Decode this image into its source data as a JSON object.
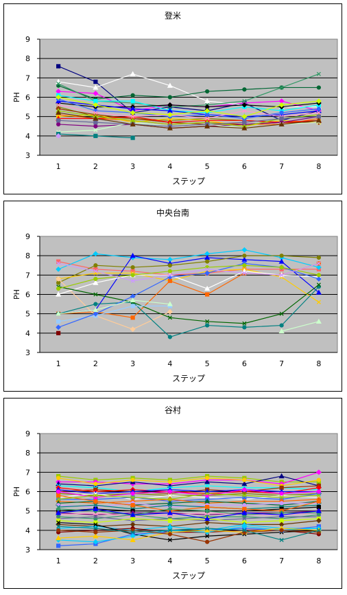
{
  "chart_data": [
    {
      "type": "line",
      "title": "登米",
      "xlabel": "ステップ",
      "ylabel": "PH",
      "categories": [
        "1",
        "2",
        "3",
        "4",
        "5",
        "6",
        "7",
        "8"
      ],
      "ylim": [
        3,
        9
      ],
      "yticks": [
        3,
        4,
        5,
        6,
        7,
        8,
        9
      ],
      "grid": true,
      "plot_background": "#c0c0c0",
      "series": [
        {
          "color": "#000080",
          "values": [
            7.6,
            6.8,
            5.2,
            5.5,
            5.3,
            5.7,
            4.8,
            5.3
          ]
        },
        {
          "color": "#ff00ff",
          "values": [
            6.3,
            6.2,
            5.3,
            5.6,
            5.5,
            5.7,
            5.8,
            5.3
          ]
        },
        {
          "color": "#ffffff",
          "values": [
            6.8,
            6.5,
            7.2,
            6.6,
            5.8,
            5.6,
            5.5,
            5.5
          ]
        },
        {
          "color": "#006633",
          "values": [
            6.6,
            5.9,
            6.1,
            6.0,
            6.3,
            6.4,
            6.5,
            6.5
          ]
        },
        {
          "color": "#339966",
          "values": [
            6.7,
            5.8,
            5.7,
            5.5,
            5.6,
            5.8,
            6.5,
            7.2
          ]
        },
        {
          "color": "#00ffff",
          "values": [
            6.1,
            5.8,
            5.8,
            5.3,
            5.2,
            5.5,
            5.3,
            5.6
          ]
        },
        {
          "color": "#000000",
          "values": [
            5.7,
            5.5,
            5.5,
            5.6,
            5.5,
            5.6,
            5.5,
            5.7
          ]
        },
        {
          "color": "#0000ff",
          "values": [
            5.8,
            5.6,
            5.4,
            5.3,
            5.1,
            5.0,
            5.1,
            5.3
          ]
        },
        {
          "color": "#808000",
          "values": [
            5.5,
            5.0,
            4.9,
            4.8,
            4.9,
            4.8,
            4.7,
            4.8
          ]
        },
        {
          "color": "#ff6600",
          "values": [
            5.1,
            4.9,
            4.8,
            4.6,
            4.7,
            4.6,
            4.6,
            4.9
          ]
        },
        {
          "color": "#ffcc00",
          "values": [
            5.0,
            5.1,
            4.7,
            4.9,
            4.8,
            4.5,
            4.8,
            4.7
          ]
        },
        {
          "color": "#993300",
          "values": [
            5.4,
            5.1,
            4.9,
            4.7,
            4.6,
            4.6,
            4.7,
            4.7
          ]
        },
        {
          "color": "#ff0000",
          "values": [
            4.9,
            4.9,
            5.0,
            4.7,
            4.8,
            4.8,
            4.7,
            4.8
          ]
        },
        {
          "color": "#800080",
          "values": [
            4.6,
            4.5,
            4.6,
            4.4,
            4.5,
            4.6,
            4.7,
            5.0
          ]
        },
        {
          "color": "#ccffcc",
          "values": [
            4.2,
            4.3,
            4.7,
            4.5,
            4.6,
            4.4,
            4.6,
            4.7
          ]
        },
        {
          "color": "#008080",
          "values": [
            4.1,
            4.0,
            3.9,
            null,
            null,
            null,
            null,
            null
          ]
        },
        {
          "color": "#cc99ff",
          "values": [
            4.0,
            null,
            null,
            null,
            null,
            null,
            null,
            null
          ]
        },
        {
          "color": "#99cc00",
          "values": [
            5.3,
            5.0,
            4.8,
            4.6,
            4.7,
            4.5,
            4.9,
            5.1
          ]
        },
        {
          "color": "#3366ff",
          "values": [
            5.9,
            5.3,
            5.2,
            5.0,
            5.1,
            4.9,
            5.2,
            5.4
          ]
        },
        {
          "color": "#ff99cc",
          "values": [
            5.6,
            5.2,
            5.0,
            5.1,
            4.9,
            5.3,
            5.0,
            5.2
          ]
        },
        {
          "color": "#666699",
          "values": [
            4.8,
            4.7,
            4.6,
            4.5,
            4.6,
            4.7,
            4.9,
            5.0
          ]
        },
        {
          "color": "#ccff00",
          "values": [
            6.0,
            5.6,
            5.2,
            5.1,
            5.3,
            5.0,
            5.6,
            5.8
          ]
        },
        {
          "color": "#663300",
          "values": [
            5.2,
            4.9,
            4.6,
            4.4,
            4.5,
            4.4,
            4.6,
            4.8
          ]
        }
      ]
    },
    {
      "type": "line",
      "title": "中央台南",
      "xlabel": "ステップ",
      "ylabel": "PH",
      "categories": [
        "1",
        "2",
        "3",
        "4",
        "5",
        "6",
        "7",
        "8"
      ],
      "ylim": [
        3,
        9
      ],
      "yticks": [
        3,
        4,
        5,
        6,
        7,
        8,
        9
      ],
      "grid": true,
      "plot_background": "#c0c0c0",
      "series": [
        {
          "color": "#ff6666",
          "values": [
            7.7,
            7.3,
            7.2,
            7.0,
            7.1,
            7.3,
            7.3,
            7.3
          ]
        },
        {
          "color": "#00ccff",
          "values": [
            7.3,
            8.1,
            7.9,
            7.8,
            8.1,
            8.3,
            7.9,
            7.4
          ]
        },
        {
          "color": "#0000ff",
          "values": [
            5.0,
            5.2,
            8.0,
            7.6,
            7.9,
            7.8,
            7.7,
            6.1
          ]
        },
        {
          "color": "#808000",
          "values": [
            6.6,
            7.5,
            7.4,
            7.5,
            7.7,
            8.0,
            8.0,
            7.9
          ]
        },
        {
          "color": "#ffcc00",
          "values": [
            6.8,
            7.1,
            7.1,
            6.7,
            7.2,
            7.3,
            6.9,
            5.6
          ]
        },
        {
          "color": "#ff6600",
          "values": [
            5.0,
            5.1,
            4.8,
            6.7,
            6.0,
            7.1,
            7.0,
            7.6
          ]
        },
        {
          "color": "#ffcc99",
          "values": [
            6.8,
            4.9,
            4.2,
            5.1,
            null,
            null,
            null,
            null
          ]
        },
        {
          "color": "#ffffff",
          "values": [
            6.0,
            6.6,
            7.0,
            7.0,
            6.3,
            7.2,
            7.0,
            6.9
          ]
        },
        {
          "color": "#008080",
          "values": [
            5.0,
            5.5,
            5.6,
            3.8,
            4.4,
            4.3,
            4.4,
            6.4
          ]
        },
        {
          "color": "#006600",
          "values": [
            6.4,
            6.0,
            5.6,
            4.8,
            4.6,
            4.5,
            5.0,
            6.5
          ]
        },
        {
          "color": "#99ccff",
          "values": [
            4.6,
            4.9,
            5.4,
            5.4,
            null,
            null,
            null,
            null
          ]
        },
        {
          "color": "#3366ff",
          "values": [
            4.3,
            5.0,
            5.9,
            6.9,
            7.1,
            7.6,
            7.4,
            6.8
          ]
        },
        {
          "color": "#ccffcc",
          "values": [
            5.0,
            5.2,
            5.7,
            5.5,
            null,
            null,
            4.1,
            4.6
          ]
        },
        {
          "color": "#99cc00",
          "values": [
            6.3,
            6.8,
            7.0,
            7.2,
            7.4,
            7.5,
            7.4,
            7.0
          ]
        },
        {
          "color": "#cc99ff",
          "values": [
            7.6,
            7.2,
            6.7,
            7.0,
            7.3,
            7.1,
            7.0,
            7.6
          ]
        },
        {
          "color": "#800000",
          "values": [
            4.0,
            null,
            null,
            null,
            null,
            null,
            null,
            null
          ]
        }
      ]
    },
    {
      "type": "line",
      "title": "谷村",
      "xlabel": "ステップ",
      "ylabel": "PH",
      "categories": [
        "1",
        "2",
        "3",
        "4",
        "5",
        "6",
        "7",
        "8"
      ],
      "ylim": [
        3,
        9
      ],
      "yticks": [
        3,
        4,
        5,
        6,
        7,
        8,
        9
      ],
      "grid": true,
      "plot_background": "#c0c0c0",
      "series": [
        {
          "color": "#99cc00",
          "values": [
            6.8,
            6.6,
            6.7,
            6.6,
            6.8,
            6.7,
            6.5,
            6.5
          ]
        },
        {
          "color": "#ff00ff",
          "values": [
            6.5,
            6.5,
            6.4,
            6.4,
            6.6,
            6.6,
            6.4,
            7.0
          ]
        },
        {
          "color": "#000080",
          "values": [
            6.4,
            6.3,
            6.5,
            6.3,
            6.5,
            6.4,
            6.8,
            6.3
          ]
        },
        {
          "color": "#ffcc00",
          "values": [
            6.7,
            6.4,
            6.6,
            6.5,
            6.7,
            6.6,
            6.3,
            6.6
          ]
        },
        {
          "color": "#00ffff",
          "values": [
            6.3,
            6.2,
            6.0,
            6.2,
            6.3,
            6.2,
            6.2,
            6.1
          ]
        },
        {
          "color": "#993300",
          "values": [
            6.0,
            6.1,
            6.0,
            5.9,
            6.1,
            6.0,
            6.2,
            6.3
          ]
        },
        {
          "color": "#ff0000",
          "values": [
            6.2,
            6.0,
            6.1,
            6.0,
            5.9,
            6.0,
            5.9,
            6.2
          ]
        },
        {
          "color": "#0000ff",
          "values": [
            6.1,
            5.9,
            6.0,
            6.1,
            6.0,
            6.1,
            6.0,
            6.0
          ]
        },
        {
          "color": "#808000",
          "values": [
            5.9,
            5.8,
            5.9,
            5.8,
            5.8,
            5.9,
            5.8,
            5.9
          ]
        },
        {
          "color": "#ffffff",
          "values": [
            5.7,
            5.9,
            5.6,
            5.8,
            5.7,
            5.6,
            5.8,
            5.7
          ]
        },
        {
          "color": "#3366ff",
          "values": [
            5.6,
            5.6,
            5.7,
            5.5,
            5.6,
            5.7,
            5.6,
            5.9
          ]
        },
        {
          "color": "#ff6600",
          "values": [
            5.5,
            5.4,
            5.5,
            5.6,
            5.4,
            5.5,
            5.5,
            5.6
          ]
        },
        {
          "color": "#006633",
          "values": [
            5.4,
            5.5,
            5.3,
            5.4,
            5.5,
            5.4,
            5.3,
            5.5
          ]
        },
        {
          "color": "#cc99ff",
          "values": [
            5.3,
            5.2,
            5.4,
            5.2,
            5.3,
            5.3,
            5.4,
            5.4
          ]
        },
        {
          "color": "#008080",
          "values": [
            5.2,
            5.3,
            5.1,
            5.3,
            5.2,
            5.1,
            5.2,
            5.3
          ]
        },
        {
          "color": "#000000",
          "values": [
            5.0,
            5.1,
            5.0,
            5.0,
            5.0,
            5.0,
            5.1,
            5.2
          ]
        },
        {
          "color": "#800080",
          "values": [
            4.9,
            4.8,
            4.9,
            4.9,
            4.8,
            4.9,
            4.9,
            5.0
          ]
        },
        {
          "color": "#ff99cc",
          "values": [
            4.8,
            4.9,
            4.7,
            4.8,
            4.9,
            4.8,
            4.8,
            4.9
          ]
        },
        {
          "color": "#339966",
          "values": [
            4.7,
            4.6,
            4.8,
            4.6,
            4.7,
            4.7,
            4.6,
            4.8
          ]
        },
        {
          "color": "#666699",
          "values": [
            4.6,
            4.7,
            4.5,
            4.6,
            4.5,
            4.6,
            4.7,
            4.7
          ]
        },
        {
          "color": "#ccff00",
          "values": [
            4.5,
            4.4,
            4.6,
            4.5,
            4.6,
            4.4,
            4.5,
            4.6
          ]
        },
        {
          "color": "#663300",
          "values": [
            4.3,
            4.2,
            4.3,
            4.2,
            4.4,
            4.3,
            4.3,
            4.5
          ]
        },
        {
          "color": "#00ccff",
          "values": [
            4.1,
            4.2,
            4.0,
            4.2,
            4.0,
            4.3,
            4.1,
            4.1
          ]
        },
        {
          "color": "#800000",
          "values": [
            3.9,
            4.0,
            4.1,
            3.9,
            3.9,
            4.0,
            4.0,
            3.8
          ]
        },
        {
          "color": "#000000",
          "values": [
            4.4,
            4.3,
            3.8,
            3.5,
            3.7,
            3.8,
            3.9,
            4.0
          ]
        },
        {
          "color": "#3366ff",
          "values": [
            3.2,
            3.3,
            3.8,
            3.9,
            4.0,
            4.1,
            4.0,
            4.2
          ]
        },
        {
          "color": "#00ccff",
          "values": [
            3.5,
            3.4,
            3.7,
            4.0,
            3.9,
            4.2,
            4.0,
            4.1
          ]
        },
        {
          "color": "#ffcc00",
          "values": [
            3.6,
            3.7,
            3.5,
            3.9,
            4.0,
            3.9,
            4.1,
            4.0
          ]
        },
        {
          "color": "#993300",
          "values": [
            4.0,
            3.9,
            4.0,
            3.8,
            3.4,
            3.9,
            4.0,
            3.9
          ]
        },
        {
          "color": "#008080",
          "values": [
            4.2,
            4.1,
            3.9,
            4.0,
            4.1,
            4.0,
            3.5,
            4.0
          ]
        },
        {
          "color": "#ff6600",
          "values": [
            5.8,
            5.5,
            5.3,
            5.0,
            5.2,
            5.1,
            5.0,
            5.5
          ]
        },
        {
          "color": "#339966",
          "values": [
            5.1,
            5.0,
            4.8,
            5.1,
            5.0,
            4.8,
            4.9,
            4.9
          ]
        },
        {
          "color": "#0000ff",
          "values": [
            4.9,
            5.1,
            4.8,
            4.9,
            4.6,
            4.9,
            4.8,
            5.0
          ]
        },
        {
          "color": "#ff00ff",
          "values": [
            6.0,
            5.7,
            5.9,
            6.0,
            5.8,
            6.1,
            5.9,
            6.0
          ]
        },
        {
          "color": "#99cc00",
          "values": [
            5.6,
            5.8,
            5.7,
            5.6,
            5.9,
            5.8,
            5.7,
            5.8
          ]
        }
      ]
    }
  ]
}
